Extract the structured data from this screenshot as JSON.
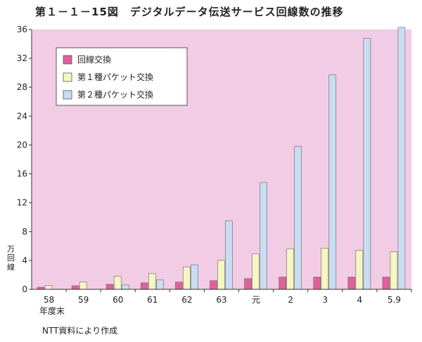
{
  "figure": {
    "title": "第１－１－15図　デジタルデータ伝送サービス回線数の推移",
    "source": "NTT資料により作成"
  },
  "colors": {
    "plot_background": "#f2cbe4",
    "axis": "#333333",
    "legend_background": "#ffffff"
  },
  "chart_data": {
    "type": "bar",
    "title": "第１－１－15図　デジタルデータ伝送サービス回線数の推移",
    "ylabel": "万回線",
    "xlabel": "年度末",
    "categories": [
      "58",
      "59",
      "60",
      "61",
      "62",
      "63",
      "元",
      "2",
      "3",
      "4",
      "5.9"
    ],
    "yticks": [
      0,
      4,
      8,
      12,
      16,
      20,
      24,
      28,
      32,
      36
    ],
    "ylim": [
      0,
      36
    ],
    "grid": false,
    "legend_position": "top-left",
    "series": [
      {
        "name": "回線交換",
        "color": "#e0609a",
        "values": [
          0.3,
          0.5,
          0.7,
          0.9,
          1.0,
          1.2,
          1.5,
          1.7,
          1.7,
          1.7,
          1.7
        ]
      },
      {
        "name": "第１種パケット交換",
        "color": "#f6f6c0",
        "values": [
          0.5,
          1.0,
          1.8,
          2.2,
          3.1,
          4.0,
          4.9,
          5.6,
          5.7,
          5.4,
          5.2
        ]
      },
      {
        "name": "第２種パケット交換",
        "color": "#c8dcf2",
        "values": [
          0.0,
          0.0,
          0.6,
          1.3,
          3.4,
          9.5,
          14.8,
          19.8,
          29.7,
          34.8,
          36.3
        ]
      }
    ]
  }
}
